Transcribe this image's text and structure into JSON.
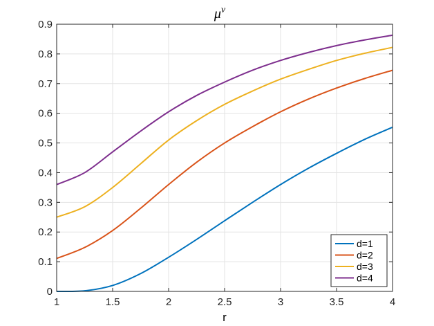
{
  "chart_data": {
    "type": "line",
    "title": "μ",
    "title_superscript": "ν",
    "xlabel": "r",
    "ylabel": "",
    "xlim": [
      1,
      4
    ],
    "ylim": [
      0,
      0.9
    ],
    "xticks": [
      1,
      1.5,
      2,
      2.5,
      3,
      3.5,
      4
    ],
    "xtick_labels": [
      "1",
      "1.5",
      "2",
      "2.5",
      "3",
      "3.5",
      "4"
    ],
    "yticks": [
      0,
      0.1,
      0.2,
      0.3,
      0.4,
      0.5,
      0.6,
      0.7,
      0.8,
      0.9
    ],
    "ytick_labels": [
      "0",
      "0.1",
      "0.2",
      "0.3",
      "0.4",
      "0.5",
      "0.6",
      "0.7",
      "0.8",
      "0.9"
    ],
    "grid": true,
    "legend_position": "bottom-right",
    "x": [
      1.0,
      1.25,
      1.5,
      1.75,
      2.0,
      2.25,
      2.5,
      2.75,
      3.0,
      3.25,
      3.5,
      3.75,
      4.0
    ],
    "series": [
      {
        "name": "d=1",
        "color": "#0072BD",
        "values": [
          0.0,
          0.002,
          0.02,
          0.06,
          0.115,
          0.175,
          0.238,
          0.3,
          0.36,
          0.415,
          0.465,
          0.512,
          0.553
        ]
      },
      {
        "name": "d=2",
        "color": "#D95319",
        "values": [
          0.111,
          0.148,
          0.205,
          0.28,
          0.36,
          0.435,
          0.5,
          0.555,
          0.605,
          0.648,
          0.685,
          0.717,
          0.745
        ]
      },
      {
        "name": "d=3",
        "color": "#EDB120",
        "values": [
          0.25,
          0.285,
          0.35,
          0.43,
          0.51,
          0.575,
          0.63,
          0.675,
          0.715,
          0.748,
          0.778,
          0.802,
          0.822
        ]
      },
      {
        "name": "d=4",
        "color": "#7E2F8E",
        "values": [
          0.36,
          0.4,
          0.47,
          0.54,
          0.605,
          0.66,
          0.705,
          0.745,
          0.778,
          0.805,
          0.828,
          0.847,
          0.863
        ]
      }
    ]
  }
}
